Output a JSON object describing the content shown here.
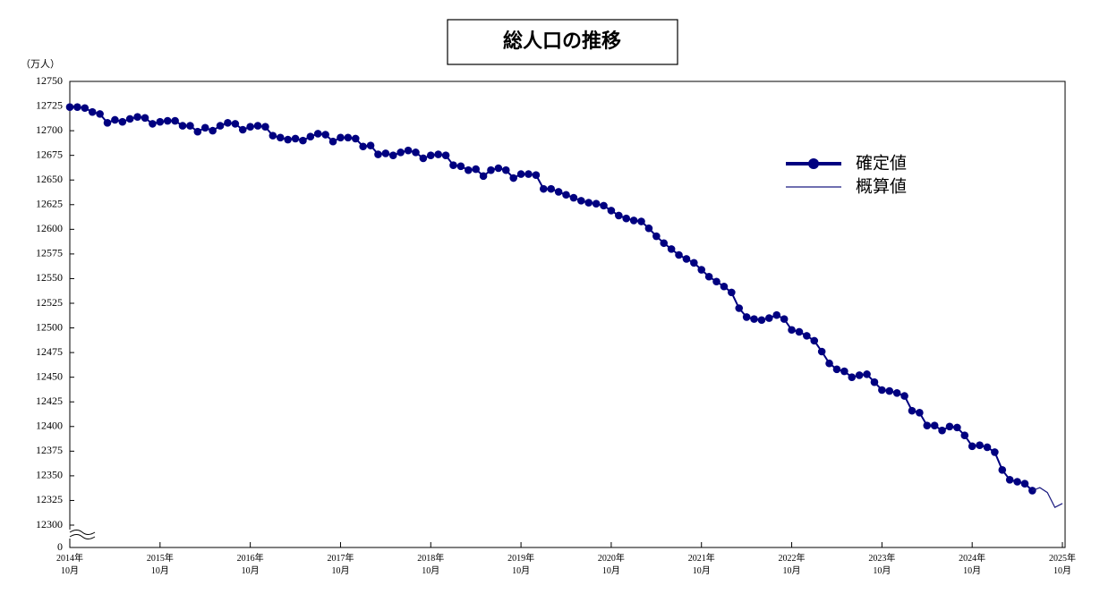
{
  "chart_data": {
    "type": "line",
    "title": "総人口の推移",
    "y_unit": "（万人）",
    "categories": [
      "2014年\n10月",
      null,
      null,
      null,
      null,
      null,
      null,
      null,
      null,
      null,
      null,
      null,
      "2015年\n10月",
      null,
      null,
      null,
      null,
      null,
      null,
      null,
      null,
      null,
      null,
      null,
      "2016年\n10月",
      null,
      null,
      null,
      null,
      null,
      null,
      null,
      null,
      null,
      null,
      null,
      "2017年\n10月",
      null,
      null,
      null,
      null,
      null,
      null,
      null,
      null,
      null,
      null,
      null,
      "2018年\n10月",
      null,
      null,
      null,
      null,
      null,
      null,
      null,
      null,
      null,
      null,
      null,
      "2019年\n10月",
      null,
      null,
      null,
      null,
      null,
      null,
      null,
      null,
      null,
      null,
      null,
      "2020年\n10月",
      null,
      null,
      null,
      null,
      null,
      null,
      null,
      null,
      null,
      null,
      null,
      "2021年\n10月",
      null,
      null,
      null,
      null,
      null,
      null,
      null,
      null,
      null,
      null,
      null,
      "2022年\n10月",
      null,
      null,
      null,
      null,
      null,
      null,
      null,
      null,
      null,
      null,
      null,
      "2023年\n10月",
      null,
      null,
      null,
      null,
      null,
      null,
      null,
      null,
      null,
      null,
      null,
      "2024年\n10月",
      null,
      null,
      null,
      null,
      null,
      null,
      null,
      null,
      null,
      null,
      null,
      "2025年\n10月"
    ],
    "series": [
      {
        "name": "確定値",
        "color": "#000080",
        "markers": true,
        "values": [
          12724,
          12724,
          12723,
          12719,
          12717,
          12708,
          12711,
          12709,
          12712,
          12714,
          12713,
          12707,
          12709,
          12710,
          12710,
          12705,
          12705,
          12699,
          12703,
          12700,
          12705,
          12708,
          12707,
          12701,
          12704,
          12705,
          12704,
          12695,
          12693,
          12691,
          12692,
          12690,
          12694,
          12697,
          12696,
          12689,
          12693,
          12693,
          12692,
          12684,
          12685,
          12676,
          12677,
          12675,
          12678,
          12680,
          12678,
          12672,
          12675,
          12676,
          12675,
          12665,
          12664,
          12660,
          12661,
          12654,
          12660,
          12662,
          12660,
          12652,
          12656,
          12656,
          12655,
          12641,
          12641,
          12638,
          12635,
          12632,
          12629,
          12627,
          12626,
          12624,
          12619,
          12614,
          12611,
          12609,
          12608,
          12601,
          12593,
          12586,
          12580,
          12574,
          12570,
          12566,
          12559,
          12552,
          12547,
          12542,
          12536,
          12520,
          12511,
          12509,
          12508,
          12510,
          12513,
          12509,
          12498,
          12496,
          12492,
          12487,
          12476,
          12464,
          12458,
          12456,
          12450,
          12452,
          12453,
          12445,
          12437,
          12436,
          12434,
          12431,
          12416,
          12414,
          12401,
          12401,
          12396,
          12400,
          12399,
          12391,
          12380,
          12381,
          12379,
          12374,
          12356,
          12346,
          12344,
          12342,
          12335,
          null,
          null,
          null,
          null
        ]
      },
      {
        "name": "概算値",
        "color": "#1a1a80",
        "markers": false,
        "values": [
          null,
          null,
          null,
          null,
          null,
          null,
          null,
          null,
          null,
          null,
          null,
          null,
          null,
          null,
          null,
          null,
          null,
          null,
          null,
          null,
          null,
          null,
          null,
          null,
          null,
          null,
          null,
          null,
          null,
          null,
          null,
          null,
          null,
          null,
          null,
          null,
          null,
          null,
          null,
          null,
          null,
          null,
          null,
          null,
          null,
          null,
          null,
          null,
          null,
          null,
          null,
          null,
          null,
          null,
          null,
          null,
          null,
          null,
          null,
          null,
          null,
          null,
          null,
          null,
          null,
          null,
          null,
          null,
          null,
          null,
          null,
          null,
          null,
          null,
          null,
          null,
          null,
          null,
          null,
          null,
          null,
          null,
          null,
          null,
          null,
          null,
          null,
          null,
          null,
          null,
          null,
          null,
          null,
          null,
          null,
          null,
          null,
          null,
          null,
          null,
          null,
          null,
          null,
          null,
          null,
          null,
          null,
          null,
          null,
          null,
          null,
          null,
          null,
          null,
          null,
          null,
          null,
          null,
          null,
          null,
          null,
          null,
          null,
          null,
          null,
          null,
          null,
          null,
          12335,
          12338,
          12333,
          12318,
          12322
        ]
      }
    ],
    "ylim": [
      12300,
      12750
    ],
    "yticks": [
      0,
      12300,
      12325,
      12350,
      12375,
      12400,
      12425,
      12450,
      12475,
      12500,
      12525,
      12550,
      12575,
      12600,
      12625,
      12650,
      12675,
      12700,
      12725,
      12750
    ],
    "axis_break": true,
    "grid": false
  }
}
